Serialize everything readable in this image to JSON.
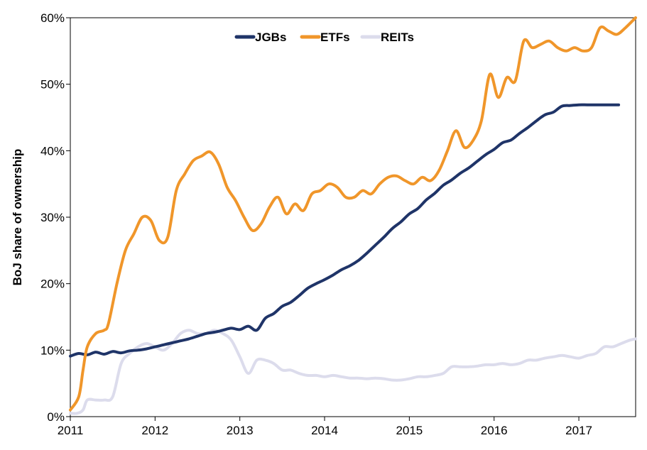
{
  "chart_data": {
    "type": "line",
    "title": "",
    "xlabel": "",
    "ylabel": "BoJ share of ownership",
    "xlim": [
      2011.0,
      2017.67
    ],
    "ylim": [
      0,
      60
    ],
    "x_ticks": [
      2011,
      2012,
      2013,
      2014,
      2015,
      2016,
      2017
    ],
    "x_tick_labels": [
      "2011",
      "2012",
      "2013",
      "2014",
      "2015",
      "2016",
      "2017"
    ],
    "y_ticks": [
      0,
      10,
      20,
      30,
      40,
      50,
      60
    ],
    "y_tick_labels": [
      "0%",
      "10%",
      "20%",
      "30%",
      "40%",
      "50%",
      "60%"
    ],
    "grid": false,
    "legend_position": "top-center",
    "series": [
      {
        "name": "JGBs",
        "color": "#1f3468",
        "x": [
          2011.0,
          2011.1,
          2011.2,
          2011.3,
          2011.4,
          2011.5,
          2011.6,
          2011.7,
          2011.8,
          2011.9,
          2012.0,
          2012.1,
          2012.2,
          2012.3,
          2012.4,
          2012.5,
          2012.6,
          2012.7,
          2012.8,
          2012.9,
          2013.0,
          2013.1,
          2013.2,
          2013.3,
          2013.4,
          2013.5,
          2013.6,
          2013.7,
          2013.8,
          2013.9,
          2014.0,
          2014.1,
          2014.2,
          2014.3,
          2014.4,
          2014.5,
          2014.6,
          2014.7,
          2014.8,
          2014.9,
          2015.0,
          2015.1,
          2015.2,
          2015.3,
          2015.4,
          2015.5,
          2015.6,
          2015.7,
          2015.8,
          2015.9,
          2016.0,
          2016.1,
          2016.2,
          2016.3,
          2016.4,
          2016.5,
          2016.6,
          2016.7,
          2016.8,
          2016.9,
          2017.0,
          2017.1,
          2017.2,
          2017.3,
          2017.4,
          2017.47
        ],
        "values": [
          9.1,
          9.5,
          9.3,
          9.7,
          9.4,
          9.8,
          9.6,
          9.9,
          10.0,
          10.2,
          10.5,
          10.8,
          11.1,
          11.4,
          11.7,
          12.1,
          12.5,
          12.7,
          13.0,
          13.3,
          13.1,
          13.6,
          13.0,
          14.8,
          15.5,
          16.6,
          17.2,
          18.2,
          19.3,
          20.0,
          20.6,
          21.3,
          22.1,
          22.7,
          23.5,
          24.6,
          25.8,
          27.0,
          28.3,
          29.3,
          30.5,
          31.3,
          32.6,
          33.6,
          34.8,
          35.6,
          36.6,
          37.4,
          38.4,
          39.4,
          40.2,
          41.2,
          41.6,
          42.6,
          43.5,
          44.5,
          45.4,
          45.8,
          46.7,
          46.8,
          46.9,
          46.9,
          46.9,
          46.9,
          46.9,
          46.9
        ]
      },
      {
        "name": "ETFs",
        "color": "#f0962a",
        "x": [
          2011.0,
          2011.1,
          2011.15,
          2011.2,
          2011.3,
          2011.4,
          2011.45,
          2011.55,
          2011.65,
          2011.75,
          2011.85,
          2011.95,
          2012.05,
          2012.15,
          2012.25,
          2012.35,
          2012.45,
          2012.55,
          2012.65,
          2012.75,
          2012.85,
          2012.95,
          2013.05,
          2013.15,
          2013.25,
          2013.35,
          2013.45,
          2013.55,
          2013.65,
          2013.75,
          2013.85,
          2013.95,
          2014.05,
          2014.15,
          2014.25,
          2014.35,
          2014.45,
          2014.55,
          2014.65,
          2014.75,
          2014.85,
          2014.95,
          2015.05,
          2015.15,
          2015.25,
          2015.35,
          2015.45,
          2015.55,
          2015.65,
          2015.75,
          2015.85,
          2015.95,
          2016.05,
          2016.15,
          2016.25,
          2016.35,
          2016.45,
          2016.55,
          2016.65,
          2016.75,
          2016.85,
          2016.95,
          2017.05,
          2017.15,
          2017.25,
          2017.35,
          2017.45,
          2017.55,
          2017.67
        ],
        "values": [
          1.0,
          3.0,
          7.0,
          10.5,
          12.5,
          13.0,
          14.0,
          20.0,
          25.0,
          27.5,
          30.0,
          29.5,
          26.5,
          27.0,
          34.0,
          36.5,
          38.5,
          39.2,
          39.8,
          38.0,
          34.5,
          32.5,
          30.0,
          28.0,
          29.0,
          31.5,
          33.0,
          30.5,
          32.0,
          31.0,
          33.5,
          34.0,
          35.0,
          34.5,
          33.0,
          33.0,
          34.0,
          33.5,
          35.0,
          36.0,
          36.2,
          35.5,
          35.0,
          36.0,
          35.5,
          37.0,
          40.0,
          43.0,
          40.5,
          41.5,
          44.5,
          51.5,
          48.0,
          51.0,
          50.5,
          56.5,
          55.5,
          56.0,
          56.5,
          55.5,
          55.0,
          55.5,
          55.0,
          55.5,
          58.5,
          58.0,
          57.5,
          58.5,
          60.0
        ]
      },
      {
        "name": "REITs",
        "color": "#dcdcec",
        "x": [
          2011.0,
          2011.08,
          2011.15,
          2011.2,
          2011.3,
          2011.4,
          2011.5,
          2011.6,
          2011.7,
          2011.8,
          2011.9,
          2012.0,
          2012.1,
          2012.2,
          2012.3,
          2012.4,
          2012.5,
          2012.6,
          2012.7,
          2012.8,
          2012.9,
          2013.0,
          2013.1,
          2013.2,
          2013.3,
          2013.4,
          2013.5,
          2013.6,
          2013.7,
          2013.8,
          2013.9,
          2014.0,
          2014.1,
          2014.2,
          2014.3,
          2014.4,
          2014.5,
          2014.6,
          2014.7,
          2014.8,
          2014.9,
          2015.0,
          2015.1,
          2015.2,
          2015.3,
          2015.4,
          2015.5,
          2015.6,
          2015.7,
          2015.8,
          2015.9,
          2016.0,
          2016.1,
          2016.2,
          2016.3,
          2016.4,
          2016.5,
          2016.6,
          2016.7,
          2016.8,
          2016.9,
          2017.0,
          2017.1,
          2017.2,
          2017.3,
          2017.4,
          2017.5,
          2017.6,
          2017.67
        ],
        "values": [
          0.5,
          0.5,
          1.0,
          2.5,
          2.5,
          2.5,
          3.0,
          8.0,
          9.5,
          10.5,
          11.0,
          10.5,
          10.0,
          11.0,
          12.5,
          13.0,
          12.5,
          12.5,
          13.0,
          12.5,
          11.5,
          9.0,
          6.5,
          8.5,
          8.5,
          8.0,
          7.0,
          7.0,
          6.5,
          6.2,
          6.2,
          6.0,
          6.2,
          6.0,
          5.8,
          5.8,
          5.7,
          5.8,
          5.7,
          5.5,
          5.5,
          5.7,
          6.0,
          6.0,
          6.2,
          6.5,
          7.5,
          7.5,
          7.5,
          7.6,
          7.8,
          7.8,
          8.0,
          7.8,
          8.0,
          8.5,
          8.5,
          8.8,
          9.0,
          9.2,
          9.0,
          8.8,
          9.2,
          9.5,
          10.5,
          10.5,
          11.0,
          11.5,
          11.7
        ]
      }
    ]
  }
}
